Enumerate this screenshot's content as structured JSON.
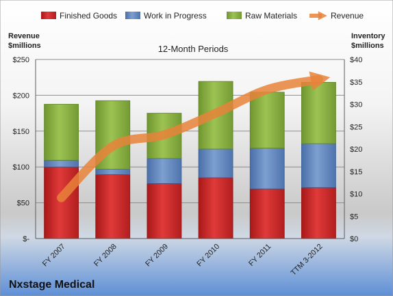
{
  "chart_data": {
    "type": "bar",
    "stacked": true,
    "subtitle": "12-Month Periods",
    "company": "Nxstage Medical",
    "categories": [
      "FY 2007",
      "FY 2008",
      "FY 2009",
      "FY 2010",
      "FY 2011",
      "TTM 3-2012"
    ],
    "y_left": {
      "label_line1": "Revenue",
      "label_line2": "$millions",
      "ylim": [
        0,
        250
      ],
      "ticks": [
        0,
        50,
        100,
        150,
        200,
        250
      ],
      "tick_labels": [
        "$-",
        "$50",
        "$100",
        "$150",
        "$200",
        "$250"
      ]
    },
    "y_right": {
      "label_line1": "Inventory",
      "label_line2": "$millions",
      "ylim": [
        0,
        40
      ],
      "ticks": [
        0,
        5,
        10,
        15,
        20,
        25,
        30,
        35,
        40
      ],
      "tick_labels": [
        "$0",
        "$5",
        "$10",
        "$15",
        "$20",
        "$25",
        "$30",
        "$35",
        "$40"
      ]
    },
    "series": [
      {
        "name": "Finished Goods",
        "axis": "right",
        "color": "#cc2424",
        "values": [
          16.0,
          14.3,
          12.3,
          13.6,
          11.1,
          11.4
        ]
      },
      {
        "name": "Work in Progress",
        "axis": "right",
        "color": "#5f82b8",
        "values": [
          1.5,
          1.2,
          5.6,
          6.4,
          9.1,
          9.8
        ]
      },
      {
        "name": "Raw Materials",
        "axis": "right",
        "color": "#86ad3c",
        "values": [
          12.5,
          15.3,
          10.1,
          15.1,
          12.5,
          13.7
        ]
      },
      {
        "name": "Revenue",
        "axis": "left",
        "type": "line",
        "color": "#e8823a",
        "values": [
          57,
          129,
          145,
          175,
          208,
          222
        ]
      }
    ],
    "grid": true,
    "legend": "top"
  }
}
